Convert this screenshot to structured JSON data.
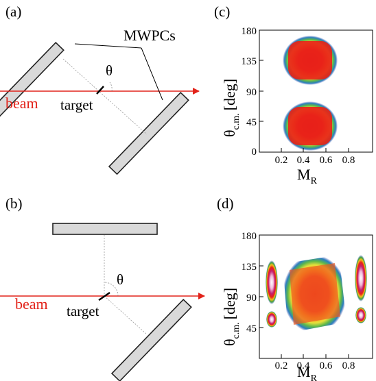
{
  "panels": {
    "a": {
      "label": "(a)",
      "detector_label": "MWPCs",
      "beam_label": "beam",
      "target_label": "target",
      "angle_symbol": "θ"
    },
    "b": {
      "label": "(b)",
      "beam_label": "beam",
      "target_label": "target",
      "angle_symbol": "θ"
    },
    "c": {
      "label": "(c)",
      "ylabel_main": "θ",
      "ylabel_sub": "c.m.",
      "ylabel_unit": "[deg]",
      "xlabel_main": "M",
      "xlabel_sub": "R"
    },
    "d": {
      "label": "(d)",
      "ylabel_main": "θ",
      "ylabel_sub": "c.m.",
      "ylabel_unit": "[deg]",
      "xlabel_main": "M",
      "xlabel_sub": "R"
    }
  },
  "colors": {
    "beam": "#e2231a",
    "detector_fill": "#d9d9d9",
    "detector_stroke": "#222222",
    "density_high": "#e8201a",
    "density_mid": "#f2c01a",
    "density_low": "#3aa043",
    "density_outer": "#1f3fa8"
  },
  "chart_data": [
    {
      "type": "heatmap",
      "panel": "c",
      "xlabel": "MR",
      "ylabel": "θc.m. [deg]",
      "xlim": [
        0,
        1.0
      ],
      "ylim": [
        0,
        180
      ],
      "x_ticks": [
        "0.2",
        "0.4",
        "0.6",
        "0.8"
      ],
      "y_ticks": [
        "0",
        "45",
        "90",
        "135",
        "180"
      ],
      "bands": [
        {
          "x_range": [
            0.28,
            0.72
          ],
          "y_range": [
            105,
            172
          ],
          "peak": [
            0.5,
            130
          ]
        },
        {
          "x_range": [
            0.28,
            0.72
          ],
          "y_range": [
            8,
            76
          ],
          "peak": [
            0.5,
            48
          ]
        }
      ]
    },
    {
      "type": "heatmap",
      "panel": "d",
      "xlabel": "MR",
      "ylabel": "θc.m. [deg]",
      "xlim": [
        0,
        1.0
      ],
      "ylim": [
        0,
        180
      ],
      "x_ticks": [
        "0.2",
        "0.4",
        "0.6",
        "0.8"
      ],
      "y_ticks": [
        "45",
        "90",
        "135",
        "180"
      ],
      "bands": [
        {
          "x_range": [
            0.3,
            0.7
          ],
          "y_range": [
            35,
            145
          ],
          "peak": [
            0.5,
            90
          ]
        }
      ],
      "quasi_elastic": [
        {
          "x": 0.12,
          "y_range": [
            45,
            135
          ]
        },
        {
          "x": 0.88,
          "y_range": [
            45,
            135
          ]
        }
      ]
    }
  ]
}
